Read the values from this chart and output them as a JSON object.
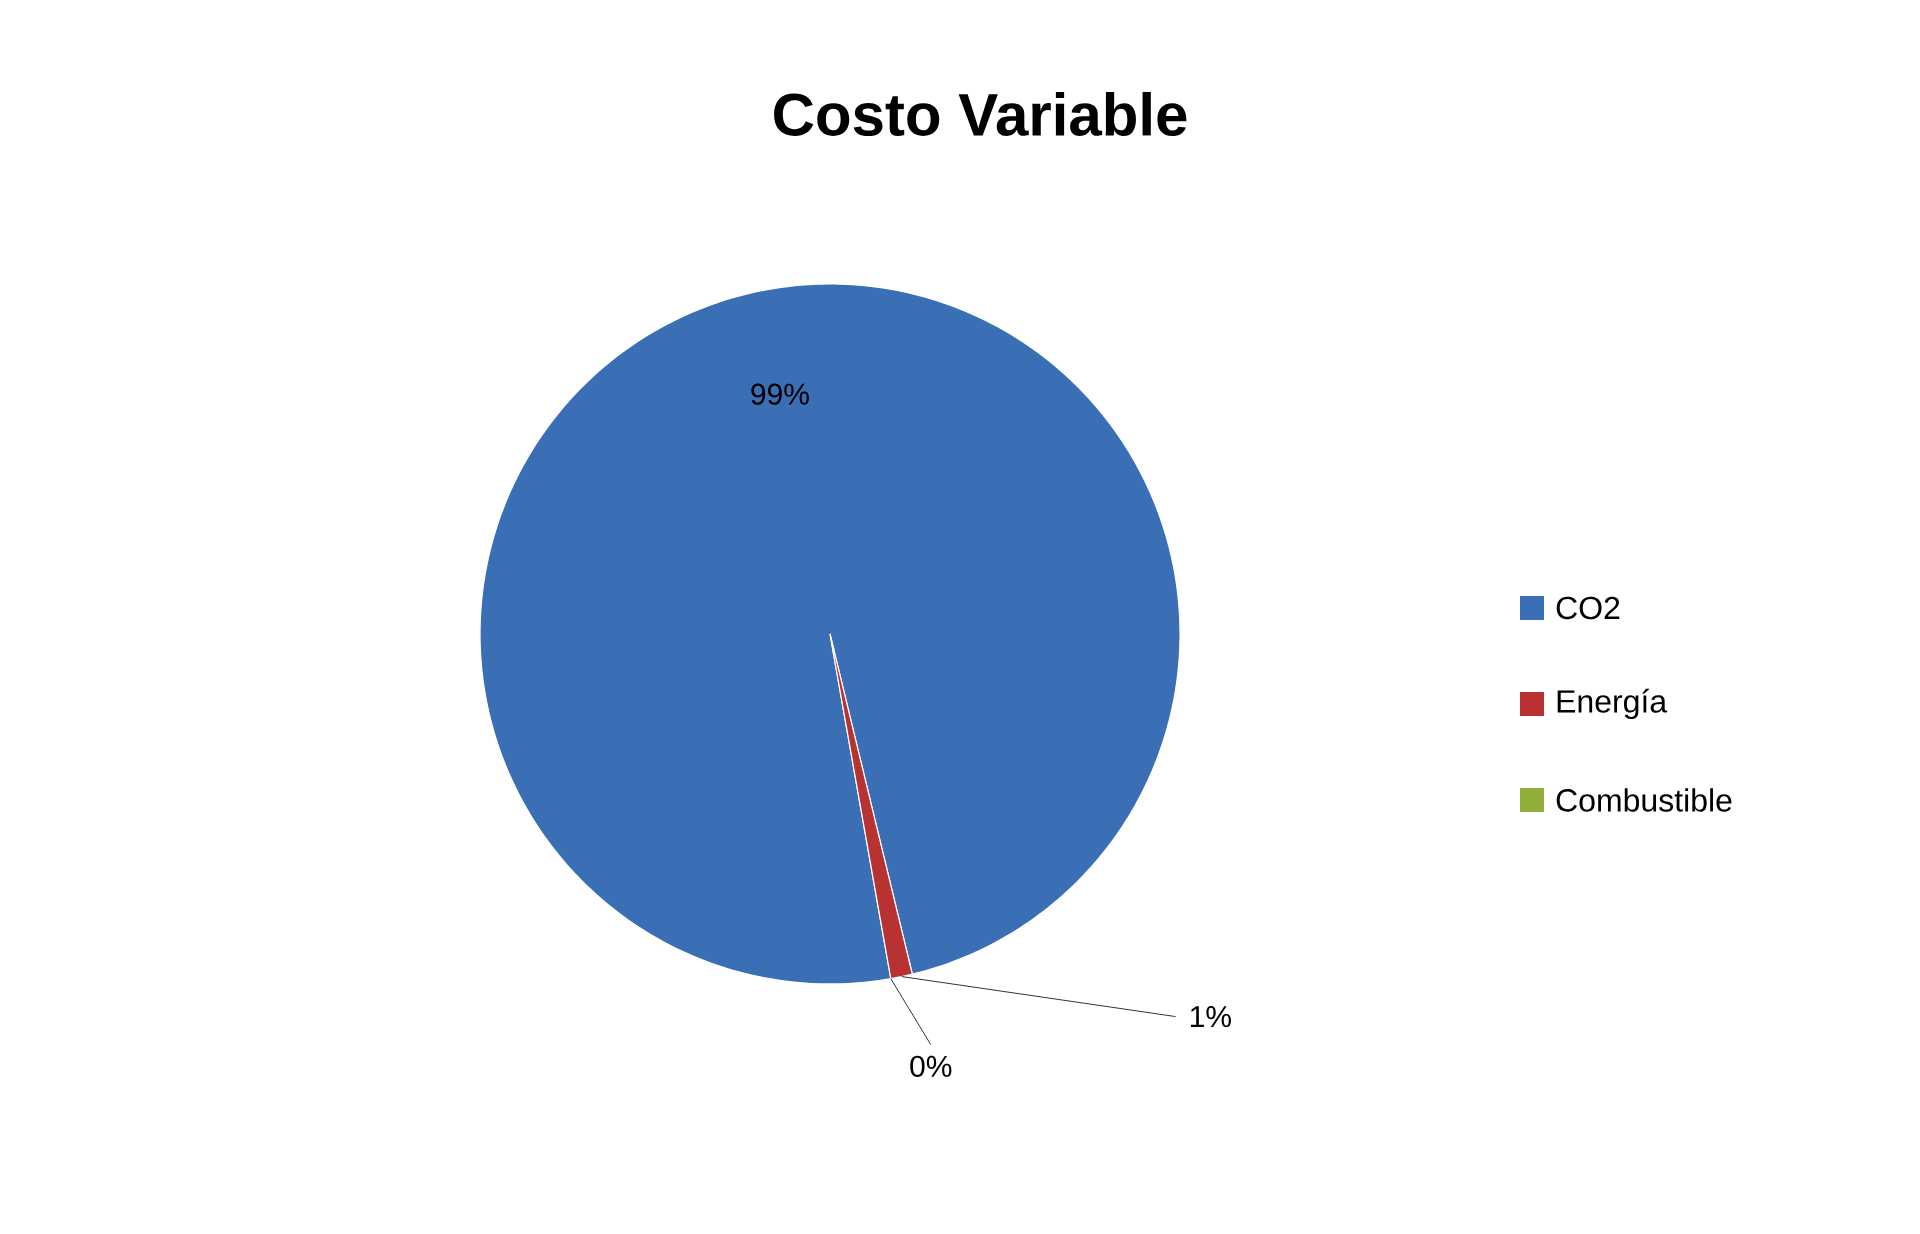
{
  "chart_data": {
    "type": "pie",
    "title": "Costo Variable",
    "categories": [
      "CO2",
      "Energía",
      "Combustible"
    ],
    "values": [
      99,
      1,
      0
    ],
    "colors": [
      "#3a6fb5",
      "#b83232",
      "#8fae3a"
    ],
    "value_labels": [
      "99%",
      "1%",
      "0%"
    ],
    "legend": "right"
  }
}
